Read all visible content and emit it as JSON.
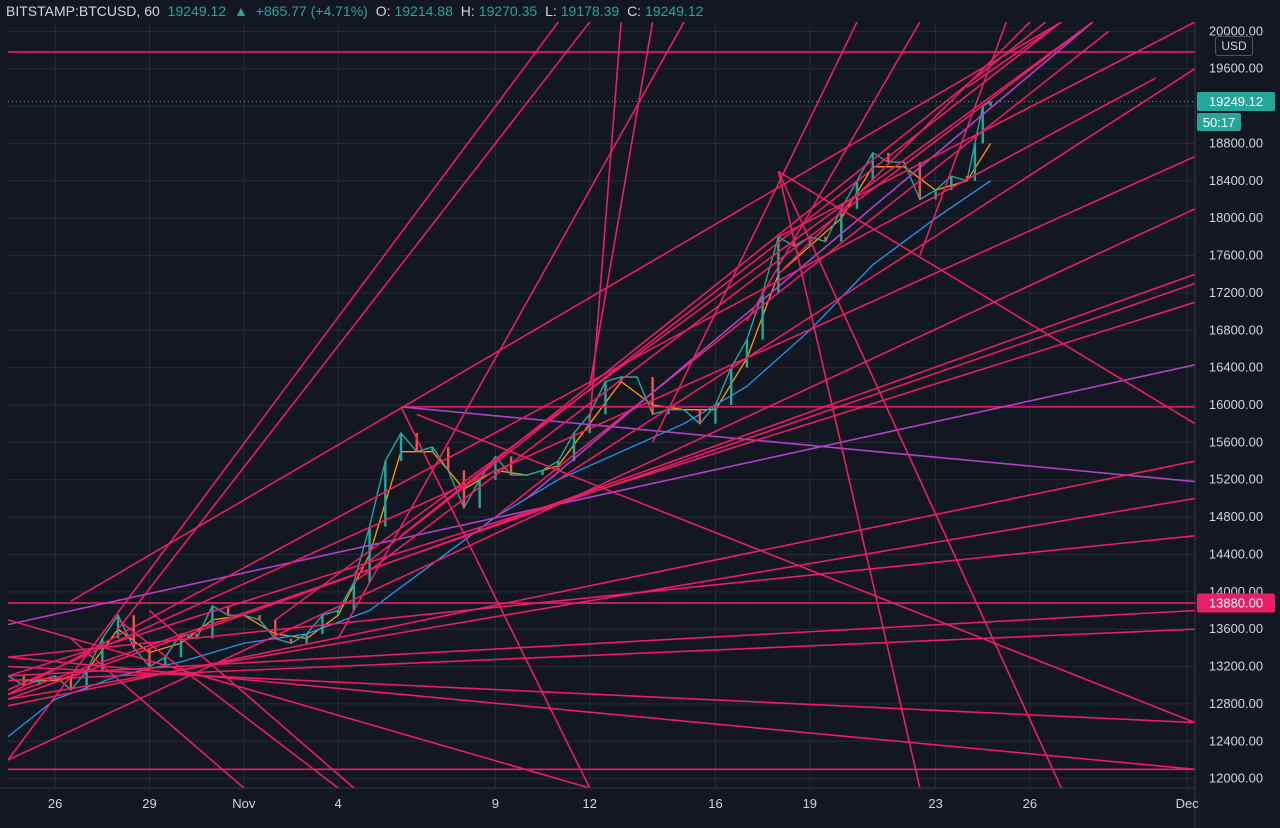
{
  "header": {
    "symbol": "BITSTAMP:BTCUSD, 60",
    "last": "19249.12",
    "arrow": "▲",
    "change": "+865.77 (+4.71%)",
    "o_label": "O:",
    "o_value": "19214.88",
    "h_label": "H:",
    "h_value": "19270.35",
    "l_label": "L:",
    "l_value": "19178.39",
    "c_label": "C:",
    "c_value": "19249.12"
  },
  "currency_button": "USD",
  "price_badge": {
    "value": "19249.12",
    "countdown": "50:17",
    "color": "#26a69a"
  },
  "level_badge": {
    "value": "13880.00",
    "color": "#e91e63"
  },
  "colors": {
    "background": "#131722",
    "grid": "#262a36",
    "trendline": "#e91e63",
    "trendline_purple": "#b042c8",
    "candle_up": "#26a69a",
    "candle_down": "#ef5350",
    "ma_fast": "#ff9800",
    "ma_slow": "#2196f3"
  },
  "chart_data": {
    "type": "line",
    "title": "",
    "xlabel": "",
    "ylabel": "",
    "ylim": [
      11900,
      20100
    ],
    "y_ticks": [
      "12000.00",
      "12400.00",
      "12800.00",
      "13200.00",
      "13600.00",
      "14000.00",
      "14400.00",
      "14800.00",
      "15200.00",
      "15600.00",
      "16000.00",
      "16400.00",
      "16800.00",
      "17200.00",
      "17600.00",
      "18000.00",
      "18400.00",
      "18800.00",
      "19200.00",
      "19600.00",
      "20000.00"
    ],
    "x_range_days": [
      "2020-10-24T12:00",
      "2020-12-01T06:00"
    ],
    "x_ticks": [
      {
        "label": "26",
        "date": "2020-10-26"
      },
      {
        "label": "29",
        "date": "2020-10-29"
      },
      {
        "label": "Nov",
        "date": "2020-11-01"
      },
      {
        "label": "4",
        "date": "2020-11-04"
      },
      {
        "label": "9",
        "date": "2020-11-09"
      },
      {
        "label": "12",
        "date": "2020-11-12"
      },
      {
        "label": "16",
        "date": "2020-11-16"
      },
      {
        "label": "19",
        "date": "2020-11-19"
      },
      {
        "label": "23",
        "date": "2020-11-23"
      },
      {
        "label": "26",
        "date": "2020-11-26"
      },
      {
        "label": "Dec",
        "date": "2020-12-01"
      }
    ],
    "last_price": 19249.12,
    "series": [
      {
        "kind": "price",
        "points": [
          [
            "2020-10-24T12:00",
            13100
          ],
          [
            "2020-10-25T00:00",
            13000
          ],
          [
            "2020-10-25T12:00",
            13050
          ],
          [
            "2020-10-26T00:00",
            13100
          ],
          [
            "2020-10-26T12:00",
            12950
          ],
          [
            "2020-10-27T00:00",
            13150
          ],
          [
            "2020-10-27T12:00",
            13500
          ],
          [
            "2020-10-28T00:00",
            13750
          ],
          [
            "2020-10-28T12:00",
            13400
          ],
          [
            "2020-10-29T00:00",
            13200
          ],
          [
            "2020-10-29T12:00",
            13300
          ],
          [
            "2020-10-30T00:00",
            13550
          ],
          [
            "2020-10-30T12:00",
            13500
          ],
          [
            "2020-10-31T00:00",
            13850
          ],
          [
            "2020-10-31T12:00",
            13750
          ],
          [
            "2020-11-01T00:00",
            13750
          ],
          [
            "2020-11-01T12:00",
            13700
          ],
          [
            "2020-11-02T00:00",
            13500
          ],
          [
            "2020-11-02T12:00",
            13450
          ],
          [
            "2020-11-03T00:00",
            13550
          ],
          [
            "2020-11-03T12:00",
            13750
          ],
          [
            "2020-11-04T00:00",
            13800
          ],
          [
            "2020-11-04T12:00",
            14100
          ],
          [
            "2020-11-05T00:00",
            14700
          ],
          [
            "2020-11-05T12:00",
            15400
          ],
          [
            "2020-11-06T00:00",
            15700
          ],
          [
            "2020-11-06T12:00",
            15500
          ],
          [
            "2020-11-07T00:00",
            15550
          ],
          [
            "2020-11-07T12:00",
            15300
          ],
          [
            "2020-11-08T00:00",
            14900
          ],
          [
            "2020-11-08T12:00",
            15200
          ],
          [
            "2020-11-09T00:00",
            15450
          ],
          [
            "2020-11-09T12:00",
            15250
          ],
          [
            "2020-11-10T00:00",
            15250
          ],
          [
            "2020-11-10T12:00",
            15300
          ],
          [
            "2020-11-11T00:00",
            15400
          ],
          [
            "2020-11-11T12:00",
            15700
          ],
          [
            "2020-11-12T00:00",
            15900
          ],
          [
            "2020-11-12T12:00",
            16250
          ],
          [
            "2020-11-13T00:00",
            16300
          ],
          [
            "2020-11-13T12:00",
            16300
          ],
          [
            "2020-11-14T00:00",
            15900
          ],
          [
            "2020-11-14T12:00",
            15950
          ],
          [
            "2020-11-15T00:00",
            15950
          ],
          [
            "2020-11-15T12:00",
            15800
          ],
          [
            "2020-11-16T00:00",
            16000
          ],
          [
            "2020-11-16T12:00",
            16400
          ],
          [
            "2020-11-17T00:00",
            16700
          ],
          [
            "2020-11-17T12:00",
            17200
          ],
          [
            "2020-11-18T00:00",
            17800
          ],
          [
            "2020-11-18T12:00",
            17700
          ],
          [
            "2020-11-19T00:00",
            17800
          ],
          [
            "2020-11-19T12:00",
            17750
          ],
          [
            "2020-11-20T00:00",
            18100
          ],
          [
            "2020-11-20T12:00",
            18400
          ],
          [
            "2020-11-21T00:00",
            18700
          ],
          [
            "2020-11-21T12:00",
            18600
          ],
          [
            "2020-11-22T00:00",
            18600
          ],
          [
            "2020-11-22T12:00",
            18200
          ],
          [
            "2020-11-23T00:00",
            18300
          ],
          [
            "2020-11-23T12:00",
            18450
          ],
          [
            "2020-11-24T00:00",
            18400
          ],
          [
            "2020-11-24T06:00",
            18800
          ],
          [
            "2020-11-24T12:00",
            19200
          ],
          [
            "2020-11-24T18:00",
            19249.12
          ]
        ]
      },
      {
        "kind": "ma_fast",
        "points": [
          [
            "2020-10-25T00:00",
            13050
          ],
          [
            "2020-10-26T00:00",
            13050
          ],
          [
            "2020-10-27T00:00",
            13150
          ],
          [
            "2020-10-28T00:00",
            13600
          ],
          [
            "2020-10-29T00:00",
            13350
          ],
          [
            "2020-10-30T00:00",
            13450
          ],
          [
            "2020-10-31T00:00",
            13700
          ],
          [
            "2020-11-01T00:00",
            13750
          ],
          [
            "2020-11-02T00:00",
            13550
          ],
          [
            "2020-11-03T00:00",
            13500
          ],
          [
            "2020-11-04T00:00",
            13750
          ],
          [
            "2020-11-05T00:00",
            14400
          ],
          [
            "2020-11-06T00:00",
            15500
          ],
          [
            "2020-11-07T00:00",
            15500
          ],
          [
            "2020-11-08T00:00",
            15100
          ],
          [
            "2020-11-09T00:00",
            15300
          ],
          [
            "2020-11-10T00:00",
            15250
          ],
          [
            "2020-11-11T00:00",
            15350
          ],
          [
            "2020-11-12T00:00",
            15800
          ],
          [
            "2020-11-13T00:00",
            16250
          ],
          [
            "2020-11-14T00:00",
            16000
          ],
          [
            "2020-11-15T00:00",
            15950
          ],
          [
            "2020-11-16T00:00",
            15950
          ],
          [
            "2020-11-17T00:00",
            16500
          ],
          [
            "2020-11-18T00:00",
            17400
          ],
          [
            "2020-11-19T00:00",
            17700
          ],
          [
            "2020-11-20T00:00",
            18000
          ],
          [
            "2020-11-21T00:00",
            18550
          ],
          [
            "2020-11-22T00:00",
            18550
          ],
          [
            "2020-11-23T00:00",
            18300
          ],
          [
            "2020-11-24T00:00",
            18400
          ],
          [
            "2020-11-24T18:00",
            18800
          ]
        ]
      },
      {
        "kind": "ma_slow",
        "points": [
          [
            "2020-10-24T12:00",
            12450
          ],
          [
            "2020-10-26T00:00",
            12850
          ],
          [
            "2020-10-28T00:00",
            13100
          ],
          [
            "2020-10-30T00:00",
            13250
          ],
          [
            "2020-11-01T00:00",
            13450
          ],
          [
            "2020-11-03T00:00",
            13550
          ],
          [
            "2020-11-05T00:00",
            13800
          ],
          [
            "2020-11-07T00:00",
            14300
          ],
          [
            "2020-11-09T00:00",
            14800
          ],
          [
            "2020-11-11T00:00",
            15200
          ],
          [
            "2020-11-13T00:00",
            15500
          ],
          [
            "2020-11-15T00:00",
            15800
          ],
          [
            "2020-11-17T00:00",
            16200
          ],
          [
            "2020-11-19T00:00",
            16800
          ],
          [
            "2020-11-21T00:00",
            17500
          ],
          [
            "2020-11-23T00:00",
            18000
          ],
          [
            "2020-11-24T18:00",
            18400
          ]
        ]
      }
    ],
    "trendlines": [
      {
        "a": [
          "2020-10-24T12:00",
          19780
        ],
        "b": [
          "2020-12-01T06:00",
          19780
        ],
        "color": "pink"
      },
      {
        "a": [
          "2020-10-24T12:00",
          13880
        ],
        "b": [
          "2020-12-01T06:00",
          13880
        ],
        "color": "pink"
      },
      {
        "a": [
          "2020-10-24T12:00",
          12100
        ],
        "b": [
          "2020-12-01T06:00",
          12100
        ],
        "color": "pink"
      },
      {
        "a": [
          "2020-11-06T00:00",
          15980
        ],
        "b": [
          "2020-12-01T06:00",
          15980
        ],
        "color": "pink"
      },
      {
        "a": [
          "2020-11-06T00:00",
          15980
        ],
        "b": [
          "2020-12-01T06:00",
          15180
        ],
        "color": "purple"
      },
      {
        "a": [
          "2020-10-24T12:00",
          13650
        ],
        "b": [
          "2020-12-01T06:00",
          16430
        ],
        "color": "purple"
      },
      {
        "a": [
          "2020-10-24T12:00",
          12950
        ],
        "b": [
          "2020-12-01T06:00",
          18660
        ],
        "color": "pink"
      },
      {
        "a": [
          "2020-10-24T12:00",
          12200
        ],
        "b": [
          "2020-12-01T06:00",
          18100
        ],
        "color": "pink"
      },
      {
        "a": [
          "2020-10-24T12:00",
          12850
        ],
        "b": [
          "2020-12-01T06:00",
          17400
        ],
        "color": "pink"
      },
      {
        "a": [
          "2020-10-24T12:00",
          12900
        ],
        "b": [
          "2020-12-01T06:00",
          17300
        ],
        "color": "pink"
      },
      {
        "a": [
          "2020-10-24T12:00",
          13100
        ],
        "b": [
          "2020-12-01T06:00",
          17100
        ],
        "color": "pink"
      },
      {
        "a": [
          "2020-10-24T12:00",
          12780
        ],
        "b": [
          "2020-12-01T06:00",
          15400
        ],
        "color": "pink"
      },
      {
        "a": [
          "2020-10-24T12:00",
          12850
        ],
        "b": [
          "2020-12-01T06:00",
          15000
        ],
        "color": "pink"
      },
      {
        "a": [
          "2020-10-24T12:00",
          13300
        ],
        "b": [
          "2020-12-01T06:00",
          14600
        ],
        "color": "pink"
      },
      {
        "a": [
          "2020-10-24T12:00",
          13100
        ],
        "b": [
          "2020-12-01T06:00",
          13800
        ],
        "color": "pink"
      },
      {
        "a": [
          "2020-10-24T12:00",
          13050
        ],
        "b": [
          "2020-12-01T06:00",
          13600
        ],
        "color": "pink"
      },
      {
        "a": [
          "2020-10-24T12:00",
          13200
        ],
        "b": [
          "2020-12-01T06:00",
          12600
        ],
        "color": "pink"
      },
      {
        "a": [
          "2020-10-24T12:00",
          13300
        ],
        "b": [
          "2020-12-01T06:00",
          12100
        ],
        "color": "pink"
      },
      {
        "a": [
          "2020-10-24T12:00",
          12900
        ],
        "b": [
          "2020-11-30T00:00",
          19500
        ],
        "color": "pink"
      },
      {
        "a": [
          "2020-11-04T12:00",
          14200
        ],
        "b": [
          "2020-11-27T00:00",
          20100
        ],
        "color": "pink"
      },
      {
        "a": [
          "2020-11-04T12:00",
          14100
        ],
        "b": [
          "2020-11-28T00:00",
          20100
        ],
        "color": "pink"
      },
      {
        "a": [
          "2020-11-09T00:00",
          14800
        ],
        "b": [
          "2020-11-28T12:00",
          20000
        ],
        "color": "pink"
      },
      {
        "a": [
          "2020-11-10T00:00",
          15000
        ],
        "b": [
          "2020-11-28T00:00",
          20100
        ],
        "color": "purple"
      },
      {
        "a": [
          "2020-11-11T00:00",
          15200
        ],
        "b": [
          "2020-12-01T06:00",
          19600
        ],
        "color": "pink"
      },
      {
        "a": [
          "2020-11-06T00:00",
          14600
        ],
        "b": [
          "2020-11-26T12:00",
          20100
        ],
        "color": "pink"
      },
      {
        "a": [
          "2020-10-26T12:00",
          13900
        ],
        "b": [
          "2020-11-27T00:00",
          20100
        ],
        "color": "pink"
      },
      {
        "a": [
          "2020-11-02T00:00",
          13700
        ],
        "b": [
          "2020-11-28T00:00",
          20100
        ],
        "color": "pink"
      },
      {
        "a": [
          "2020-11-04T00:00",
          13500
        ],
        "b": [
          "2020-11-15T00:00",
          20100
        ],
        "color": "pink"
      },
      {
        "a": [
          "2020-10-28T00:00",
          13600
        ],
        "b": [
          "2020-11-12T00:00",
          20100
        ],
        "color": "pink"
      },
      {
        "a": [
          "2020-10-24T12:00",
          12200
        ],
        "b": [
          "2020-11-11T00:00",
          20100
        ],
        "color": "pink"
      },
      {
        "a": [
          "2020-11-12T00:00",
          15800
        ],
        "b": [
          "2020-11-13T00:00",
          20100
        ],
        "color": "pink"
      },
      {
        "a": [
          "2020-11-18T00:00",
          18500
        ],
        "b": [
          "2020-12-01T06:00",
          15800
        ],
        "color": "pink"
      },
      {
        "a": [
          "2020-11-18T00:00",
          18500
        ],
        "b": [
          "2020-11-22T12:00",
          11900
        ],
        "color": "pink"
      },
      {
        "a": [
          "2020-11-18T00:00",
          18500
        ],
        "b": [
          "2020-11-27T00:00",
          11900
        ],
        "color": "pink"
      },
      {
        "a": [
          "2020-11-06T00:00",
          15980
        ],
        "b": [
          "2020-11-12T00:00",
          11900
        ],
        "color": "pink"
      },
      {
        "a": [
          "2020-11-06T12:00",
          15900
        ],
        "b": [
          "2020-12-01T06:00",
          12600
        ],
        "color": "pink"
      },
      {
        "a": [
          "2020-10-24T12:00",
          13700
        ],
        "b": [
          "2020-11-12T00:00",
          11900
        ],
        "color": "pink"
      },
      {
        "a": [
          "2020-10-26T12:00",
          13500
        ],
        "b": [
          "2020-11-01T00:00",
          11900
        ],
        "color": "pink"
      },
      {
        "a": [
          "2020-10-28T00:00",
          13700
        ],
        "b": [
          "2020-11-04T00:00",
          11900
        ],
        "color": "pink"
      },
      {
        "a": [
          "2020-10-29T00:00",
          13800
        ],
        "b": [
          "2020-11-04T12:00",
          11900
        ],
        "color": "pink"
      },
      {
        "a": [
          "2020-11-12T00:00",
          16200
        ],
        "b": [
          "2020-11-14T00:00",
          20100
        ],
        "color": "pink"
      },
      {
        "a": [
          "2020-11-14T00:00",
          15600
        ],
        "b": [
          "2020-11-20T12:00",
          20100
        ],
        "color": "pink"
      },
      {
        "a": [
          "2020-11-17T00:00",
          16900
        ],
        "b": [
          "2020-11-22T12:00",
          20100
        ],
        "color": "pink"
      },
      {
        "a": [
          "2020-11-22T12:00",
          17600
        ],
        "b": [
          "2020-11-25T06:00",
          20100
        ],
        "color": "pink"
      },
      {
        "a": [
          "2020-11-18T00:00",
          17400
        ],
        "b": [
          "2020-11-26T00:00",
          20100
        ],
        "color": "pink"
      },
      {
        "a": [
          "2020-11-18T00:00",
          17800
        ],
        "b": [
          "2020-12-01T06:00",
          20100
        ],
        "color": "pink"
      },
      {
        "a": [
          "2020-11-24T00:00",
          19400
        ],
        "b": [
          "2020-11-27T00:00",
          20100
        ],
        "color": "pink"
      }
    ]
  }
}
